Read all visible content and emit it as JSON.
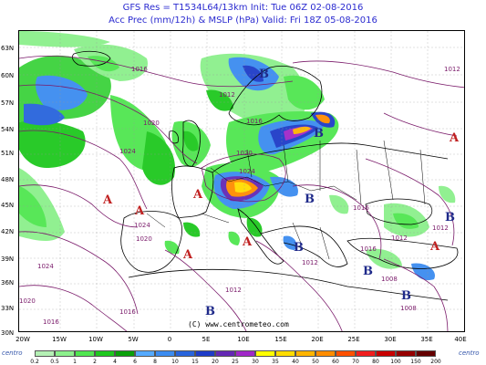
{
  "header": {
    "line1": "GFS Res = T1534L64/13km   Init: Tue 06Z 02-08-2016",
    "line2": "Acc Prec (mm/12h) & MSLP (hPa)   Valid: Fri 18Z 05-08-2016"
  },
  "lat_labels": [
    "63N",
    "60N",
    "57N",
    "54N",
    "51N",
    "48N",
    "45N",
    "42N",
    "39N",
    "36N",
    "33N",
    "30N"
  ],
  "lon_labels": [
    "20W",
    "15W",
    "10W",
    "5W",
    "0",
    "5E",
    "10E",
    "15E",
    "20E",
    "25E",
    "30E",
    "35E",
    "40E"
  ],
  "pressure_centers": [
    {
      "label": "A",
      "type": "high"
    },
    {
      "label": "A",
      "type": "high"
    },
    {
      "label": "A",
      "type": "high"
    },
    {
      "label": "A",
      "type": "high"
    },
    {
      "label": "A",
      "type": "high"
    },
    {
      "label": "A",
      "type": "high"
    },
    {
      "label": "A",
      "type": "high"
    },
    {
      "label": "B",
      "type": "low"
    },
    {
      "label": "B",
      "type": "low"
    },
    {
      "label": "B",
      "type": "low"
    },
    {
      "label": "B",
      "type": "low"
    },
    {
      "label": "B",
      "type": "low"
    },
    {
      "label": "B",
      "type": "low"
    },
    {
      "label": "B",
      "type": "low"
    },
    {
      "label": "B",
      "type": "low"
    }
  ],
  "isobar_labels": [
    "1016",
    "1012",
    "1020",
    "1016",
    "1024",
    "1020",
    "1024",
    "1024",
    "1020",
    "1024",
    "1016",
    "1012",
    "1016",
    "1012",
    "1012",
    "1008",
    "1016",
    "1016",
    "1012",
    "1020",
    "1008",
    "1012"
  ],
  "copyright": "(C) www.centrometeo.com",
  "legend": {
    "values": [
      "0.2",
      "0.5",
      "1",
      "2",
      "4",
      "6",
      "8",
      "10",
      "15",
      "20",
      "25",
      "30",
      "35",
      "40",
      "50",
      "60",
      "70",
      "80",
      "100",
      "150",
      "200"
    ],
    "colors": [
      "#b4f0b4",
      "#8cf08c",
      "#50e650",
      "#1ec81e",
      "#0aa00a",
      "#55aaff",
      "#3c8cf0",
      "#2864dc",
      "#1e3cc8",
      "#6428b4",
      "#a028c8",
      "#ffff00",
      "#ffdc00",
      "#ffb400",
      "#ff8c00",
      "#ff5000",
      "#f01e1e",
      "#c80000",
      "#960000",
      "#640000"
    ],
    "logo_left": "centro",
    "logo_right": "centro"
  },
  "colors": {
    "title": "#2b2bd0",
    "coast": "#000000",
    "isobar": "#7a1a6a",
    "high": "#c02020",
    "low": "#1f2a8a"
  }
}
